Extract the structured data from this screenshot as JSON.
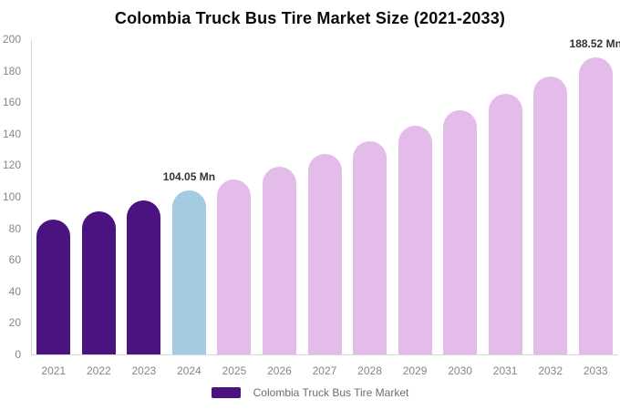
{
  "title": "Colombia Truck Bus Tire Market Size (2021-2033)",
  "legend": {
    "label": "Colombia Truck Bus Tire Market"
  },
  "colors": {
    "historical_bar": "#4A1380",
    "highlight_bar": "#A3CBE2",
    "forecast_bar": "#E4BCE9",
    "axis_line": "#D8D8D8",
    "tick_label": "#878787",
    "data_label": "#333333",
    "legend_text": "#6E6E6E",
    "title_text": "#0A0A0A"
  },
  "chart_data": {
    "type": "bar",
    "title": "Colombia Truck Bus Tire Market Size (2021-2033)",
    "unit": "Mn",
    "categories": [
      "2021",
      "2022",
      "2023",
      "2024",
      "2025",
      "2026",
      "2027",
      "2028",
      "2029",
      "2030",
      "2031",
      "2032",
      "2033"
    ],
    "values": [
      85.5,
      91.0,
      97.4,
      104.05,
      111.2,
      118.8,
      126.9,
      135.5,
      144.8,
      154.7,
      165.3,
      176.5,
      188.52
    ],
    "bar_color_roles": [
      "historical_bar",
      "historical_bar",
      "historical_bar",
      "highlight_bar",
      "forecast_bar",
      "forecast_bar",
      "forecast_bar",
      "forecast_bar",
      "forecast_bar",
      "forecast_bar",
      "forecast_bar",
      "forecast_bar",
      "forecast_bar"
    ],
    "annotations": [
      {
        "index": 3,
        "text": "104.05 Mn"
      },
      {
        "index": 12,
        "text": "188.52 Mn"
      }
    ],
    "xlabel": "",
    "ylabel": "",
    "ylim": [
      0,
      200
    ],
    "ytick_step": 20,
    "grid": false,
    "legend_position": "bottom-center"
  }
}
